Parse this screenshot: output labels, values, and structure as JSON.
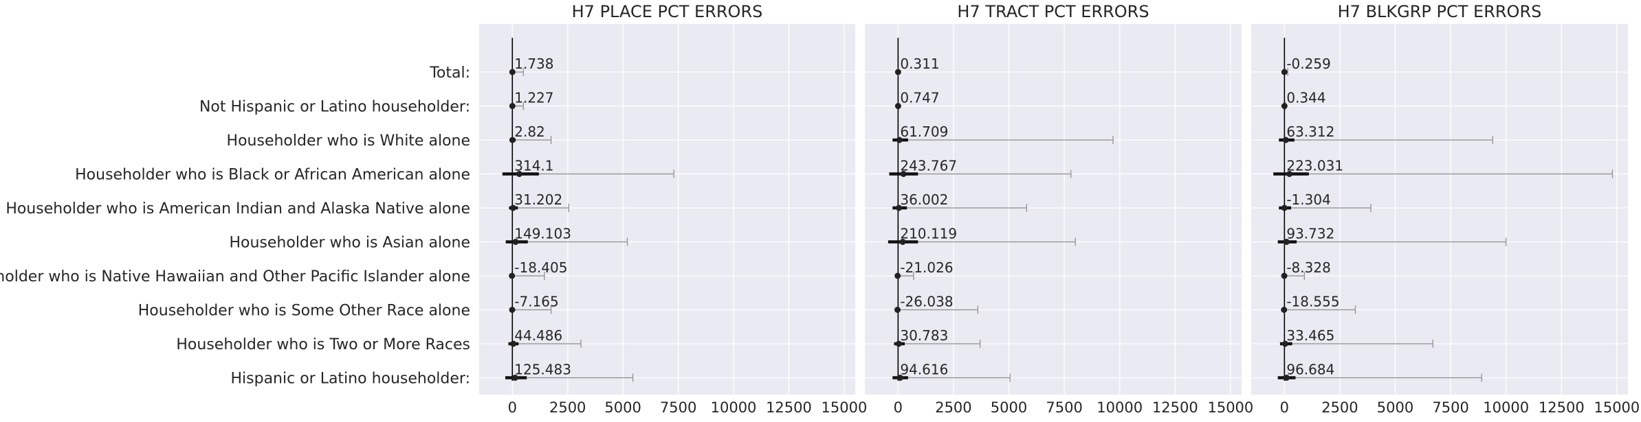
{
  "categories": [
    "Total:",
    "Not Hispanic or Latino householder:",
    "Householder who is White alone",
    "Householder who is Black or African American alone",
    "Householder who is American Indian and Alaska Native alone",
    "Householder who is Asian alone",
    "Householder who is Native Hawaiian and Other Pacific Islander alone",
    "Householder who is Some Other Race alone",
    "Householder who is Two or More Races",
    "Hispanic or Latino householder:"
  ],
  "colors": {
    "panel_bg": "#EAEAF2",
    "grid": "#FFFFFF",
    "point": "#222222",
    "whisker": "#8C8C8C",
    "text": "#262626"
  },
  "chart_data": [
    {
      "type": "scatter",
      "title": "H7 PLACE PCT ERRORS",
      "xlim": [
        -1500,
        15500
      ],
      "xticks": [
        0,
        2500,
        5000,
        7500,
        10000,
        12500,
        15000
      ],
      "grid": true,
      "mean_labels": [
        "1.738",
        "1.227",
        "2.82",
        "314.1",
        "31.202",
        "149.103",
        "-18.405",
        "-7.165",
        "44.486",
        "125.483"
      ],
      "mean": [
        1.738,
        1.227,
        2.82,
        314.1,
        31.202,
        149.103,
        -18.405,
        -7.165,
        44.486,
        125.483
      ],
      "whisker_max": [
        500,
        500,
        1750,
        7300,
        2550,
        5200,
        1450,
        1750,
        3100,
        5450
      ],
      "iqr_low": [
        -20,
        -20,
        -80,
        -450,
        -150,
        -300,
        -40,
        -80,
        -180,
        -320
      ],
      "iqr_high": [
        20,
        20,
        150,
        1200,
        250,
        700,
        50,
        70,
        280,
        650
      ]
    },
    {
      "type": "scatter",
      "title": "H7 TRACT PCT ERRORS",
      "xlim": [
        -1500,
        15500
      ],
      "xticks": [
        0,
        2500,
        5000,
        7500,
        10000,
        12500,
        15000
      ],
      "grid": true,
      "mean_labels": [
        "0.311",
        "0.747",
        "61.709",
        "243.767",
        "36.002",
        "210.119",
        "-21.026",
        "-26.038",
        "30.783",
        "94.616"
      ],
      "mean": [
        0.311,
        0.747,
        61.709,
        243.767,
        36.002,
        210.119,
        -21.026,
        -26.038,
        30.783,
        94.616
      ],
      "whisker_max": [
        20,
        30,
        9700,
        7800,
        5800,
        8000,
        700,
        3600,
        3700,
        5050
      ],
      "iqr_low": [
        -10,
        -10,
        -250,
        -400,
        -250,
        -450,
        -60,
        -100,
        -180,
        -250
      ],
      "iqr_high": [
        10,
        10,
        450,
        900,
        400,
        900,
        60,
        80,
        300,
        450
      ]
    },
    {
      "type": "scatter",
      "title": "H7 BLKGRP PCT ERRORS",
      "xlim": [
        -1500,
        15500
      ],
      "xticks": [
        0,
        2500,
        5000,
        7500,
        10000,
        12500,
        15000
      ],
      "grid": true,
      "mean_labels": [
        "-0.259",
        "0.344",
        "63.312",
        "223.031",
        "-1.304",
        "93.732",
        "-8.328",
        "-18.555",
        "33.465",
        "96.684"
      ],
      "mean": [
        -0.259,
        0.344,
        63.312,
        223.031,
        -1.304,
        93.732,
        -8.328,
        -18.555,
        33.465,
        96.684
      ],
      "whisker_max": [
        150,
        50,
        9400,
        14800,
        3900,
        10000,
        900,
        3200,
        6700,
        8900
      ],
      "iqr_low": [
        -40,
        -10,
        -250,
        -500,
        -250,
        -300,
        -40,
        -80,
        -200,
        -300
      ],
      "iqr_high": [
        40,
        10,
        450,
        1100,
        300,
        550,
        50,
        70,
        350,
        500
      ]
    }
  ]
}
